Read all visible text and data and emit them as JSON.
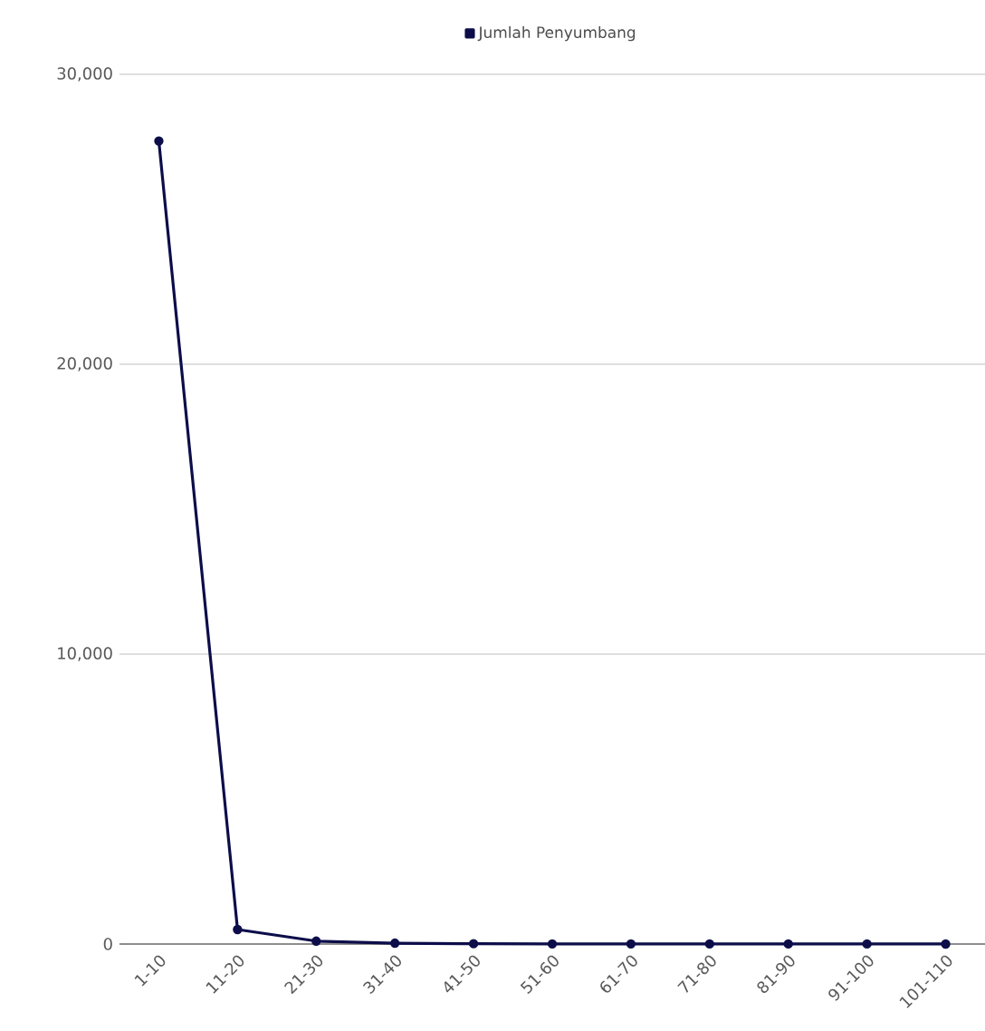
{
  "chart_data": {
    "type": "line",
    "categories": [
      "1-10",
      "11-20",
      "21-30",
      "31-40",
      "41-50",
      "51-60",
      "61-70",
      "71-80",
      "81-90",
      "91-100",
      "101-110"
    ],
    "series": [
      {
        "name": "Jumlah Penyumbang",
        "color": "#0d0d4a",
        "values": [
          27700,
          500,
          100,
          30,
          10,
          5,
          5,
          3,
          2,
          2,
          1
        ]
      }
    ],
    "ylim": [
      0,
      30000
    ],
    "yticks": [
      {
        "value": 0,
        "label": "0"
      },
      {
        "value": 10000,
        "label": "10,000"
      },
      {
        "value": 20000,
        "label": "20,000"
      },
      {
        "value": 30000,
        "label": "30,000"
      }
    ],
    "grid": "y",
    "legend": "top",
    "marker": "circle",
    "line_style": "solid"
  }
}
